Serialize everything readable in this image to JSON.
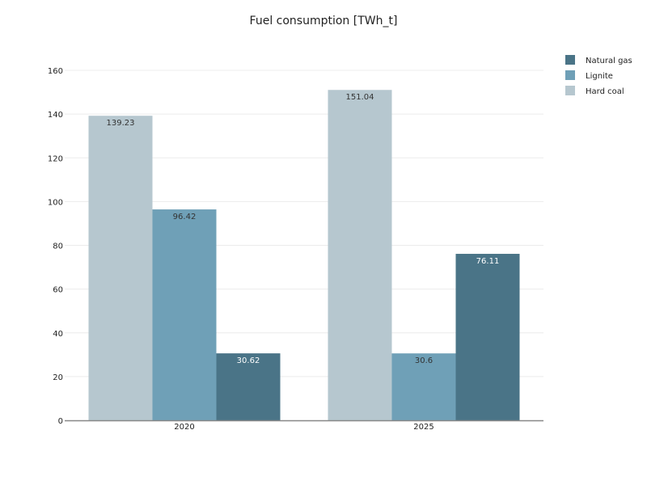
{
  "chart_data": {
    "type": "bar",
    "title": "Fuel consumption [TWh_t]",
    "categories": [
      "2020",
      "2025"
    ],
    "series": [
      {
        "name": "Hard coal",
        "values": [
          139.23,
          151.04
        ],
        "color": "#b6c7cf",
        "label_color": "#333333"
      },
      {
        "name": "Lignite",
        "values": [
          96.42,
          30.6
        ],
        "color": "#6fa0b7",
        "label_color": "#333333"
      },
      {
        "name": "Natural gas",
        "values": [
          30.62,
          76.11
        ],
        "color": "#4a7487",
        "label_color": "#ffffff"
      }
    ],
    "legend_order": [
      "Natural gas",
      "Lignite",
      "Hard coal"
    ],
    "yticks": [
      0,
      20,
      40,
      60,
      80,
      100,
      120,
      140,
      160
    ],
    "ylim": [
      0,
      160
    ],
    "grid": true,
    "legend_position": "top-right",
    "xlabel": "",
    "ylabel": ""
  }
}
